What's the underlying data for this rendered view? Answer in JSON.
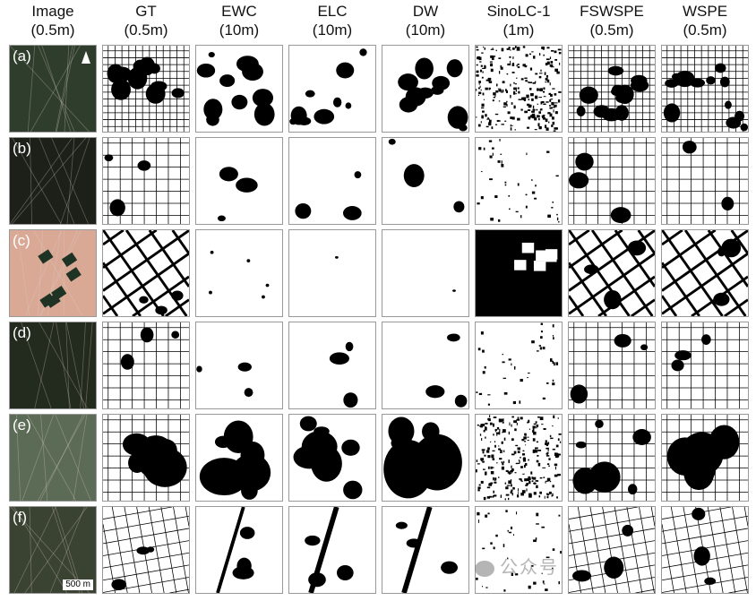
{
  "columns": [
    {
      "title": "Image",
      "res": "(0.5m)"
    },
    {
      "title": "GT",
      "res": "(0.5m)"
    },
    {
      "title": "EWC",
      "res": "(10m)"
    },
    {
      "title": "ELC",
      "res": "(10m)"
    },
    {
      "title": "DW",
      "res": "(10m)"
    },
    {
      "title": "SinoLC-1",
      "res": "(1m)"
    },
    {
      "title": "FSWSPE",
      "res": "(0.5m)"
    },
    {
      "title": "WSPE",
      "res": "(0.5m)"
    }
  ],
  "rows": [
    {
      "label": "(a)",
      "image_color": "#2f3d2c"
    },
    {
      "label": "(b)",
      "image_color": "#1c2018"
    },
    {
      "label": "(c)",
      "image_color": "#d9a996"
    },
    {
      "label": "(d)",
      "image_color": "#232a1e"
    },
    {
      "label": "(e)",
      "image_color": "#5c6b55"
    },
    {
      "label": "(f)",
      "image_color": "#3a4232"
    }
  ],
  "north_arrow_icon": "north-arrow-icon",
  "scale_bar": "500 m",
  "watermark": "公众号"
}
